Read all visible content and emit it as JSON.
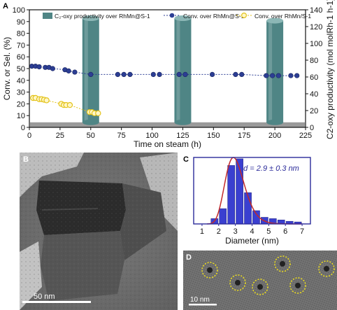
{
  "panels": {
    "A": {
      "letter": "A"
    },
    "B": {
      "letter": "B",
      "scale_label": "50 nm"
    },
    "C": {
      "letter": "C",
      "annotation": "d = 2.9 ± 0.3 nm"
    },
    "D": {
      "letter": "D",
      "scale_label": "10 nm"
    }
  },
  "colors": {
    "cylinder": "#4f8585",
    "cylinder_top": "#8cb7b6",
    "blue_series": "#2c3e94",
    "yellow_series": "#e3c21a",
    "bar": "#3a3fd0",
    "fit": "#c22a2a",
    "plate": "#888888"
  },
  "chart_data": [
    {
      "type": "combo",
      "panel": "A",
      "xlabel": "Time on steam (h)",
      "ylabel_left": "Conv. or Sel. (%)",
      "ylabel_right": "C2-oxy productivity (mol molRh-1 h-1)",
      "xlim": [
        0,
        225
      ],
      "ylim_left": [
        0,
        100
      ],
      "ylim_right": [
        0,
        140
      ],
      "x_ticks": [
        "0",
        "25",
        "50",
        "75",
        "100",
        "125",
        "150",
        "175",
        "200",
        "225"
      ],
      "left_ticks": [
        "0",
        "10",
        "20",
        "30",
        "40",
        "50",
        "60",
        "70",
        "80",
        "90",
        "100"
      ],
      "right_ticks": [
        "0",
        "20",
        "40",
        "60",
        "80",
        "100",
        "120",
        "140"
      ],
      "legend": {
        "cyl": "C₂-oxy productivity over RhMn@S-1",
        "blue": "Conv. over RhMn@S-1",
        "yellow": "Conv. over RhMn/S-1"
      },
      "productivity_bars": [
        {
          "x": 50,
          "value": 130
        },
        {
          "x": 125,
          "value": 130
        },
        {
          "x": 200,
          "value": 127
        }
      ],
      "series": [
        {
          "name": "Conv. over RhMn@S-1",
          "x": [
            2,
            5,
            8,
            13,
            16,
            19,
            29,
            32,
            37,
            50,
            72,
            77,
            82,
            101,
            106,
            122,
            127,
            149,
            168,
            173,
            193,
            198,
            203,
            213,
            218
          ],
          "y": [
            52,
            52,
            51.5,
            51,
            51,
            50,
            49,
            48,
            47,
            45,
            45,
            45,
            45,
            45,
            45,
            45,
            45,
            45,
            45,
            45,
            44,
            44,
            44,
            44,
            44
          ]
        },
        {
          "name": "Conv. over RhMn/S-1",
          "x": [
            3,
            5,
            8,
            10,
            12,
            14,
            26,
            28,
            30,
            33,
            49,
            51,
            53,
            56
          ],
          "y": [
            25,
            25,
            24,
            24,
            23.5,
            23,
            20,
            19,
            19,
            19,
            13,
            13,
            12,
            12
          ]
        }
      ]
    },
    {
      "type": "bar",
      "panel": "C",
      "xlabel": "Diameter (nm)",
      "xlim": [
        0.5,
        7.5
      ],
      "ylim": [
        0,
        100
      ],
      "x_ticks": [
        "1",
        "2",
        "3",
        "4",
        "5",
        "6",
        "7"
      ],
      "bins": [
        1.75,
        2.25,
        2.75,
        3.25,
        3.75,
        4.25,
        4.75,
        5.25,
        5.75,
        6.25,
        6.75
      ],
      "values": [
        8,
        23,
        88,
        98,
        47,
        20,
        10,
        8,
        6,
        4,
        3
      ]
    }
  ]
}
